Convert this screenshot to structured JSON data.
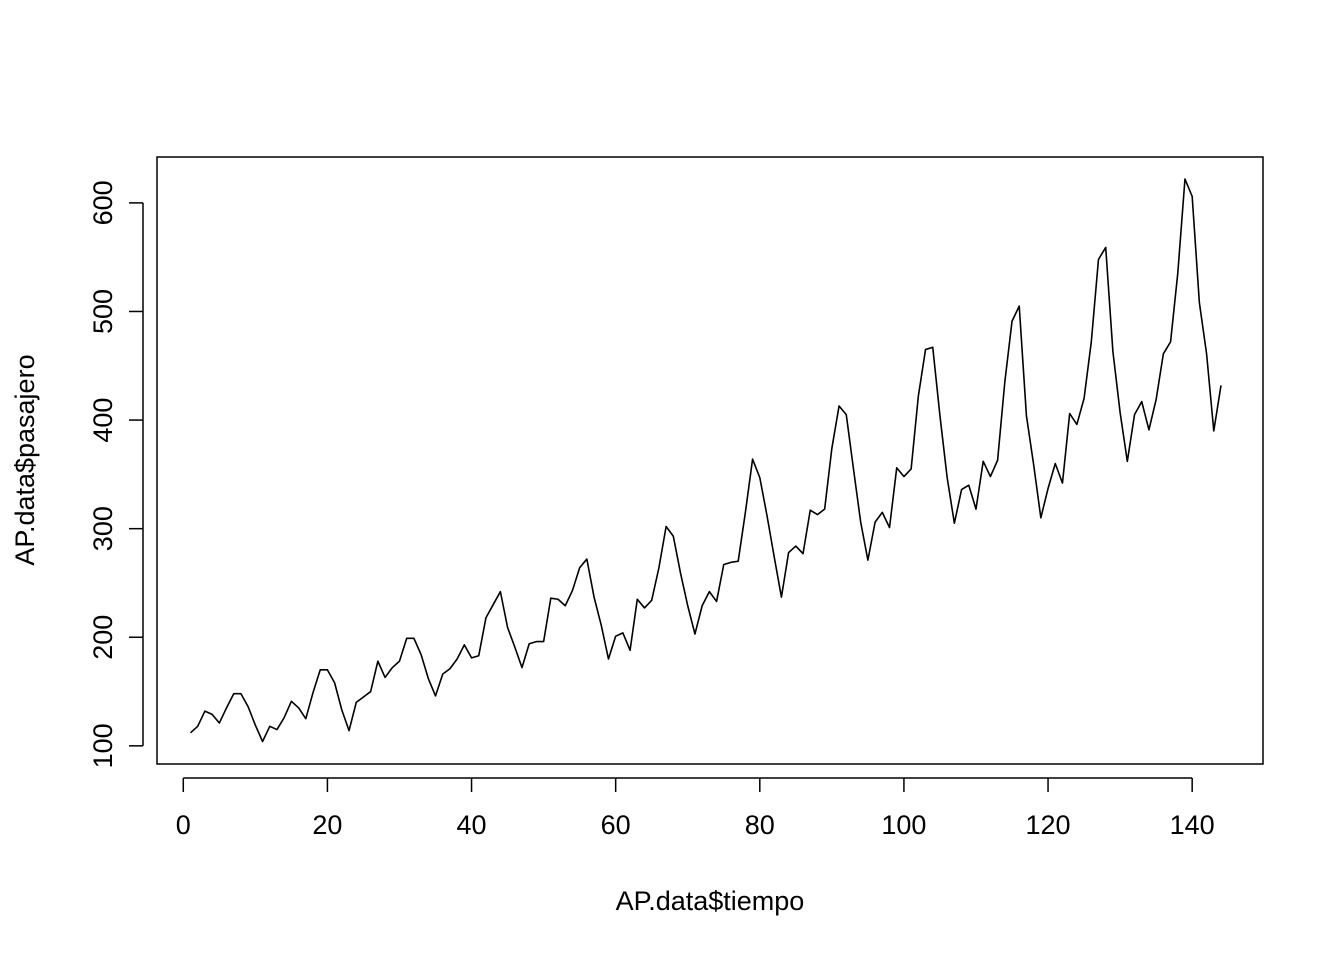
{
  "chart_data": {
    "type": "line",
    "title": "",
    "xlabel": "AP.data$tiempo",
    "ylabel": "AP.data$pasajero",
    "xlim": [
      1,
      144
    ],
    "ylim": [
      104,
      622
    ],
    "x_ticks": [
      0,
      20,
      40,
      60,
      80,
      100,
      120,
      140
    ],
    "y_ticks": [
      100,
      200,
      300,
      400,
      500,
      600
    ],
    "grid": false,
    "legend": "none",
    "color": "#000000",
    "x": [
      1,
      2,
      3,
      4,
      5,
      6,
      7,
      8,
      9,
      10,
      11,
      12,
      13,
      14,
      15,
      16,
      17,
      18,
      19,
      20,
      21,
      22,
      23,
      24,
      25,
      26,
      27,
      28,
      29,
      30,
      31,
      32,
      33,
      34,
      35,
      36,
      37,
      38,
      39,
      40,
      41,
      42,
      43,
      44,
      45,
      46,
      47,
      48,
      49,
      50,
      51,
      52,
      53,
      54,
      55,
      56,
      57,
      58,
      59,
      60,
      61,
      62,
      63,
      64,
      65,
      66,
      67,
      68,
      69,
      70,
      71,
      72,
      73,
      74,
      75,
      76,
      77,
      78,
      79,
      80,
      81,
      82,
      83,
      84,
      85,
      86,
      87,
      88,
      89,
      90,
      91,
      92,
      93,
      94,
      95,
      96,
      97,
      98,
      99,
      100,
      101,
      102,
      103,
      104,
      105,
      106,
      107,
      108,
      109,
      110,
      111,
      112,
      113,
      114,
      115,
      116,
      117,
      118,
      119,
      120,
      121,
      122,
      123,
      124,
      125,
      126,
      127,
      128,
      129,
      130,
      131,
      132,
      133,
      134,
      135,
      136,
      137,
      138,
      139,
      140,
      141,
      142,
      143,
      144
    ],
    "series": [
      {
        "values": [
          112,
          118,
          132,
          129,
          121,
          135,
          148,
          148,
          136,
          119,
          104,
          118,
          115,
          126,
          141,
          135,
          125,
          149,
          170,
          170,
          158,
          133,
          114,
          140,
          145,
          150,
          178,
          163,
          172,
          178,
          199,
          199,
          184,
          162,
          146,
          166,
          171,
          180,
          193,
          181,
          183,
          218,
          230,
          242,
          209,
          191,
          172,
          194,
          196,
          196,
          236,
          235,
          229,
          243,
          264,
          272,
          237,
          211,
          180,
          201,
          204,
          188,
          235,
          227,
          234,
          264,
          302,
          293,
          259,
          229,
          203,
          229,
          242,
          233,
          267,
          269,
          270,
          315,
          364,
          347,
          312,
          274,
          237,
          278,
          284,
          277,
          317,
          313,
          318,
          374,
          413,
          405,
          355,
          306,
          271,
          306,
          315,
          301,
          356,
          348,
          355,
          422,
          465,
          467,
          404,
          347,
          305,
          336,
          340,
          318,
          362,
          348,
          363,
          435,
          491,
          505,
          404,
          359,
          310,
          337,
          360,
          342,
          406,
          396,
          420,
          472,
          548,
          559,
          463,
          407,
          362,
          405,
          417,
          391,
          419,
          461,
          472,
          535,
          622,
          606,
          508,
          461,
          390,
          432
        ]
      }
    ]
  }
}
